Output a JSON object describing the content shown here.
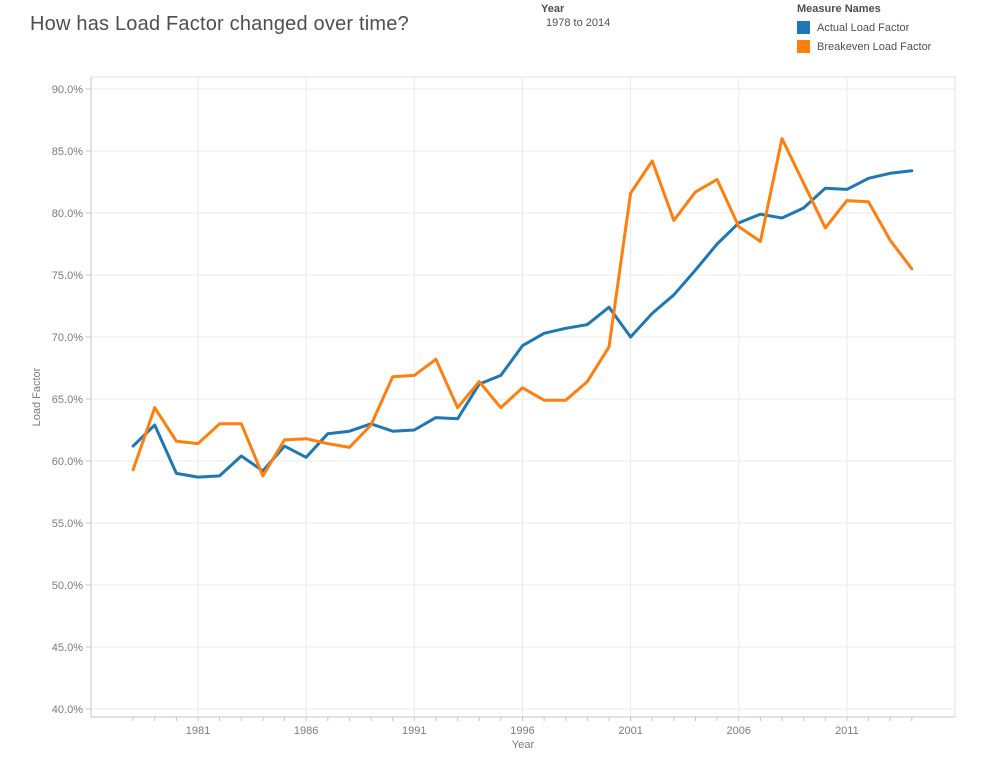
{
  "header": {
    "title": "How has Load Factor changed over time?",
    "filter": {
      "label": "Year",
      "value": "1978 to 2014"
    },
    "legend": {
      "title": "Measure Names",
      "items": [
        {
          "label": "Actual Load Factor",
          "color": "#1f77b4"
        },
        {
          "label": "Breakeven Load Factor",
          "color": "#ff7f0e"
        }
      ]
    }
  },
  "chart_data": {
    "type": "line",
    "title": "How has Load Factor changed over time?",
    "xlabel": "Year",
    "ylabel": "Load Factor",
    "ylim": [
      40,
      90
    ],
    "grid": true,
    "legend_position": "top-right",
    "x": [
      1978,
      1979,
      1980,
      1981,
      1982,
      1983,
      1984,
      1985,
      1986,
      1987,
      1988,
      1989,
      1990,
      1991,
      1992,
      1993,
      1994,
      1995,
      1996,
      1997,
      1998,
      1999,
      2000,
      2001,
      2002,
      2003,
      2004,
      2005,
      2006,
      2007,
      2008,
      2009,
      2010,
      2011,
      2012,
      2013,
      2014
    ],
    "series": [
      {
        "name": "Actual Load Factor",
        "color": "#1f77b4",
        "values": [
          61.2,
          62.9,
          59.0,
          58.7,
          58.8,
          60.4,
          59.2,
          61.2,
          60.3,
          62.2,
          62.4,
          63.0,
          62.4,
          62.5,
          63.5,
          63.4,
          66.2,
          66.9,
          69.3,
          70.3,
          70.7,
          71.0,
          72.4,
          70.0,
          71.9,
          73.4,
          75.4,
          77.5,
          79.2,
          79.9,
          79.6,
          80.4,
          82.0,
          81.9,
          82.8,
          83.2,
          83.4
        ]
      },
      {
        "name": "Breakeven Load Factor",
        "color": "#ff7f0e",
        "values": [
          59.3,
          64.3,
          61.6,
          61.4,
          63.0,
          63.0,
          58.8,
          61.7,
          61.8,
          61.4,
          61.1,
          62.9,
          66.8,
          66.9,
          68.2,
          64.3,
          66.4,
          64.3,
          65.9,
          64.9,
          64.9,
          66.4,
          69.2,
          81.6,
          84.2,
          79.4,
          81.7,
          82.7,
          78.9,
          77.7,
          86.0,
          82.4,
          78.8,
          81.0,
          80.9,
          77.8,
          75.5
        ]
      }
    ],
    "y_ticks": [
      {
        "v": 90,
        "label": "90.0%"
      },
      {
        "v": 85,
        "label": "85.0%"
      },
      {
        "v": 80,
        "label": "80.0%"
      },
      {
        "v": 75,
        "label": "75.0%"
      },
      {
        "v": 70,
        "label": "70.0%"
      },
      {
        "v": 65,
        "label": "65.0%"
      },
      {
        "v": 60,
        "label": "60.0%"
      },
      {
        "v": 55,
        "label": "55.0%"
      },
      {
        "v": 50,
        "label": "50.0%"
      },
      {
        "v": 45,
        "label": "45.0%"
      },
      {
        "v": 40,
        "label": "40.0%"
      }
    ],
    "x_ticks": [
      {
        "v": 1981,
        "label": "1981"
      },
      {
        "v": 1986,
        "label": "1986"
      },
      {
        "v": 1991,
        "label": "1991"
      },
      {
        "v": 1996,
        "label": "1996"
      },
      {
        "v": 2001,
        "label": "2001"
      },
      {
        "v": 2006,
        "label": "2006"
      },
      {
        "v": 2011,
        "label": "2011"
      }
    ]
  },
  "style": {
    "grid_color": "#e9e9e9",
    "border_color": "#e0e0e0",
    "axis_color": "#c6c6c6",
    "tick_text_color": "#7b7b81",
    "header_text_color": "#4e4e54"
  }
}
